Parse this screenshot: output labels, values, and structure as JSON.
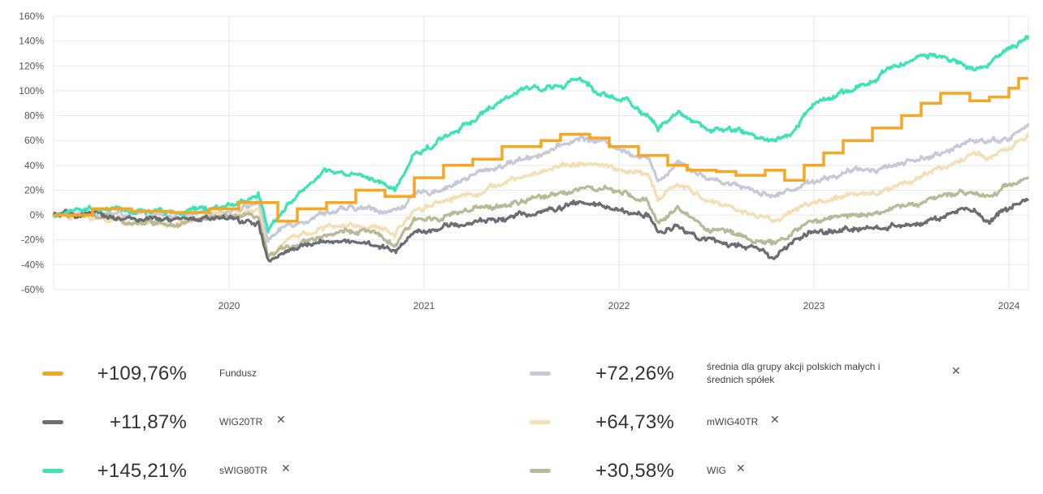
{
  "chart_data": {
    "type": "line",
    "ylim": [
      -60,
      160
    ],
    "y_ticks": [
      -60,
      -40,
      -20,
      0,
      20,
      40,
      60,
      80,
      100,
      120,
      140,
      160
    ],
    "y_tick_labels": [
      "-60%",
      "-40%",
      "-20%",
      "0%",
      "20%",
      "40%",
      "60%",
      "80%",
      "100%",
      "120%",
      "140%",
      "160%"
    ],
    "x_range": [
      2019.1,
      2024.1
    ],
    "x_ticks": [
      2020,
      2021,
      2022,
      2023,
      2024
    ],
    "x_tick_labels": [
      "2020",
      "2021",
      "2022",
      "2023",
      "2024"
    ],
    "grid": true,
    "series": [
      {
        "name": "średnia dla grupy akcji polskich małych i średnich spółek",
        "color": "#c5c9d8",
        "final_label": "+72,26%",
        "style": "noisy",
        "points": [
          [
            2019.1,
            0
          ],
          [
            2019.3,
            2
          ],
          [
            2019.5,
            0
          ],
          [
            2019.7,
            -2
          ],
          [
            2019.9,
            1
          ],
          [
            2020.1,
            8
          ],
          [
            2020.15,
            10
          ],
          [
            2020.2,
            -20
          ],
          [
            2020.3,
            -8
          ],
          [
            2020.5,
            3
          ],
          [
            2020.7,
            5
          ],
          [
            2020.85,
            3
          ],
          [
            2020.95,
            15
          ],
          [
            2021.1,
            22
          ],
          [
            2021.3,
            35
          ],
          [
            2021.5,
            45
          ],
          [
            2021.7,
            55
          ],
          [
            2021.8,
            62
          ],
          [
            2021.95,
            58
          ],
          [
            2022.05,
            50
          ],
          [
            2022.15,
            48
          ],
          [
            2022.2,
            25
          ],
          [
            2022.3,
            45
          ],
          [
            2022.45,
            30
          ],
          [
            2022.6,
            25
          ],
          [
            2022.75,
            18
          ],
          [
            2022.8,
            15
          ],
          [
            2022.9,
            22
          ],
          [
            2023.0,
            28
          ],
          [
            2023.2,
            35
          ],
          [
            2023.4,
            40
          ],
          [
            2023.6,
            48
          ],
          [
            2023.7,
            50
          ],
          [
            2023.8,
            62
          ],
          [
            2023.9,
            60
          ],
          [
            2024.0,
            62
          ],
          [
            2024.1,
            72
          ]
        ]
      },
      {
        "name": "mWIG40TR",
        "color": "#f3dfb5",
        "final_label": "+64,73%",
        "style": "noisy",
        "points": [
          [
            2019.1,
            0
          ],
          [
            2019.3,
            -2
          ],
          [
            2019.5,
            -5
          ],
          [
            2019.7,
            -8
          ],
          [
            2019.9,
            -2
          ],
          [
            2020.1,
            2
          ],
          [
            2020.15,
            3
          ],
          [
            2020.2,
            -32
          ],
          [
            2020.3,
            -18
          ],
          [
            2020.5,
            -10
          ],
          [
            2020.7,
            -8
          ],
          [
            2020.85,
            -15
          ],
          [
            2020.95,
            5
          ],
          [
            2021.1,
            12
          ],
          [
            2021.3,
            20
          ],
          [
            2021.5,
            30
          ],
          [
            2021.7,
            40
          ],
          [
            2021.8,
            42
          ],
          [
            2021.95,
            38
          ],
          [
            2022.05,
            35
          ],
          [
            2022.15,
            32
          ],
          [
            2022.2,
            12
          ],
          [
            2022.3,
            25
          ],
          [
            2022.45,
            12
          ],
          [
            2022.6,
            5
          ],
          [
            2022.75,
            -2
          ],
          [
            2022.8,
            -5
          ],
          [
            2022.9,
            5
          ],
          [
            2023.0,
            10
          ],
          [
            2023.2,
            15
          ],
          [
            2023.4,
            22
          ],
          [
            2023.6,
            35
          ],
          [
            2023.7,
            40
          ],
          [
            2023.8,
            50
          ],
          [
            2023.9,
            45
          ],
          [
            2024.0,
            52
          ],
          [
            2024.1,
            65
          ]
        ]
      },
      {
        "name": "WIG",
        "color": "#b8b996",
        "final_label": "+30,58%",
        "style": "noisy",
        "points": [
          [
            2019.1,
            0
          ],
          [
            2019.3,
            -1
          ],
          [
            2019.5,
            -5
          ],
          [
            2019.7,
            -6
          ],
          [
            2019.9,
            -3
          ],
          [
            2020.1,
            -2
          ],
          [
            2020.15,
            -3
          ],
          [
            2020.2,
            -35
          ],
          [
            2020.3,
            -25
          ],
          [
            2020.5,
            -15
          ],
          [
            2020.7,
            -12
          ],
          [
            2020.85,
            -25
          ],
          [
            2020.95,
            -5
          ],
          [
            2021.1,
            0
          ],
          [
            2021.3,
            5
          ],
          [
            2021.5,
            10
          ],
          [
            2021.7,
            18
          ],
          [
            2021.8,
            22
          ],
          [
            2021.95,
            20
          ],
          [
            2022.05,
            15
          ],
          [
            2022.15,
            10
          ],
          [
            2022.2,
            -5
          ],
          [
            2022.3,
            5
          ],
          [
            2022.45,
            -10
          ],
          [
            2022.6,
            -15
          ],
          [
            2022.75,
            -22
          ],
          [
            2022.8,
            -25
          ],
          [
            2022.9,
            -12
          ],
          [
            2023.0,
            -5
          ],
          [
            2023.2,
            0
          ],
          [
            2023.4,
            5
          ],
          [
            2023.6,
            12
          ],
          [
            2023.7,
            15
          ],
          [
            2023.8,
            20
          ],
          [
            2023.9,
            15
          ],
          [
            2024.0,
            25
          ],
          [
            2024.1,
            31
          ]
        ]
      },
      {
        "name": "WIG20TR",
        "color": "#6b6d74",
        "final_label": "+11,87%",
        "style": "noisy",
        "points": [
          [
            2019.1,
            0
          ],
          [
            2019.3,
            0
          ],
          [
            2019.5,
            -3
          ],
          [
            2019.7,
            -5
          ],
          [
            2019.9,
            -2
          ],
          [
            2020.1,
            -5
          ],
          [
            2020.15,
            -7
          ],
          [
            2020.2,
            -38
          ],
          [
            2020.3,
            -30
          ],
          [
            2020.5,
            -20
          ],
          [
            2020.7,
            -22
          ],
          [
            2020.85,
            -30
          ],
          [
            2020.95,
            -12
          ],
          [
            2021.1,
            -10
          ],
          [
            2021.3,
            -5
          ],
          [
            2021.5,
            0
          ],
          [
            2021.7,
            5
          ],
          [
            2021.8,
            10
          ],
          [
            2021.95,
            5
          ],
          [
            2022.05,
            2
          ],
          [
            2022.15,
            0
          ],
          [
            2022.2,
            -15
          ],
          [
            2022.3,
            -8
          ],
          [
            2022.45,
            -20
          ],
          [
            2022.6,
            -25
          ],
          [
            2022.75,
            -30
          ],
          [
            2022.8,
            -35
          ],
          [
            2022.9,
            -20
          ],
          [
            2023.0,
            -15
          ],
          [
            2023.2,
            -12
          ],
          [
            2023.4,
            -8
          ],
          [
            2023.6,
            -5
          ],
          [
            2023.7,
            0
          ],
          [
            2023.8,
            5
          ],
          [
            2023.9,
            -5
          ],
          [
            2024.0,
            5
          ],
          [
            2024.1,
            12
          ]
        ]
      },
      {
        "name": "sWIG80TR",
        "color": "#3de3b7",
        "final_label": "+145,21%",
        "style": "noisy",
        "points": [
          [
            2019.1,
            0
          ],
          [
            2019.3,
            5
          ],
          [
            2019.5,
            3
          ],
          [
            2019.7,
            2
          ],
          [
            2019.9,
            5
          ],
          [
            2020.1,
            12
          ],
          [
            2020.15,
            18
          ],
          [
            2020.2,
            -12
          ],
          [
            2020.3,
            10
          ],
          [
            2020.5,
            35
          ],
          [
            2020.7,
            30
          ],
          [
            2020.85,
            20
          ],
          [
            2020.95,
            48
          ],
          [
            2021.1,
            62
          ],
          [
            2021.3,
            82
          ],
          [
            2021.5,
            100
          ],
          [
            2021.7,
            105
          ],
          [
            2021.8,
            108
          ],
          [
            2021.95,
            95
          ],
          [
            2022.05,
            92
          ],
          [
            2022.15,
            80
          ],
          [
            2022.2,
            70
          ],
          [
            2022.3,
            82
          ],
          [
            2022.45,
            70
          ],
          [
            2022.6,
            68
          ],
          [
            2022.75,
            62
          ],
          [
            2022.8,
            60
          ],
          [
            2022.9,
            68
          ],
          [
            2023.0,
            90
          ],
          [
            2023.2,
            100
          ],
          [
            2023.4,
            118
          ],
          [
            2023.6,
            130
          ],
          [
            2023.7,
            125
          ],
          [
            2023.8,
            118
          ],
          [
            2023.9,
            120
          ],
          [
            2024.0,
            135
          ],
          [
            2024.1,
            145
          ]
        ]
      },
      {
        "name": "Fundusz",
        "color": "#f5a623",
        "final_label": "+109,76%",
        "style": "step",
        "points": [
          [
            2019.1,
            0
          ],
          [
            2019.3,
            5
          ],
          [
            2019.5,
            3
          ],
          [
            2019.7,
            2
          ],
          [
            2019.9,
            5
          ],
          [
            2020.05,
            10
          ],
          [
            2020.15,
            10
          ],
          [
            2020.25,
            -5
          ],
          [
            2020.35,
            5
          ],
          [
            2020.5,
            10
          ],
          [
            2020.65,
            20
          ],
          [
            2020.8,
            15
          ],
          [
            2020.95,
            30
          ],
          [
            2021.1,
            40
          ],
          [
            2021.25,
            45
          ],
          [
            2021.4,
            55
          ],
          [
            2021.6,
            60
          ],
          [
            2021.7,
            65
          ],
          [
            2021.85,
            62
          ],
          [
            2021.95,
            55
          ],
          [
            2022.1,
            48
          ],
          [
            2022.25,
            40
          ],
          [
            2022.35,
            36
          ],
          [
            2022.5,
            35
          ],
          [
            2022.6,
            32
          ],
          [
            2022.75,
            36
          ],
          [
            2022.85,
            28
          ],
          [
            2022.95,
            40
          ],
          [
            2023.05,
            50
          ],
          [
            2023.15,
            60
          ],
          [
            2023.3,
            70
          ],
          [
            2023.45,
            80
          ],
          [
            2023.55,
            90
          ],
          [
            2023.65,
            98
          ],
          [
            2023.8,
            92
          ],
          [
            2023.9,
            95
          ],
          [
            2024.0,
            102
          ],
          [
            2024.05,
            110
          ],
          [
            2024.1,
            110
          ]
        ]
      }
    ]
  },
  "legend": {
    "items": [
      {
        "value": "+109,76%",
        "name": "Fundusz",
        "color": "#f5a623",
        "removable": false
      },
      {
        "value": "+11,87%",
        "name": "WIG20TR",
        "color": "#6b6d74",
        "removable": true
      },
      {
        "value": "+145,21%",
        "name": "sWIG80TR",
        "color": "#3de3b7",
        "removable": true
      },
      {
        "value": "+72,26%",
        "name": "średnia dla grupy akcji polskich małych i średnich spółek",
        "color": "#c5c9d8",
        "removable": true
      },
      {
        "value": "+64,73%",
        "name": "mWIG40TR",
        "color": "#f3dfb5",
        "removable": true
      },
      {
        "value": "+30,58%",
        "name": "WIG",
        "color": "#b8b996",
        "removable": true
      }
    ],
    "close_glyph": "✕"
  }
}
